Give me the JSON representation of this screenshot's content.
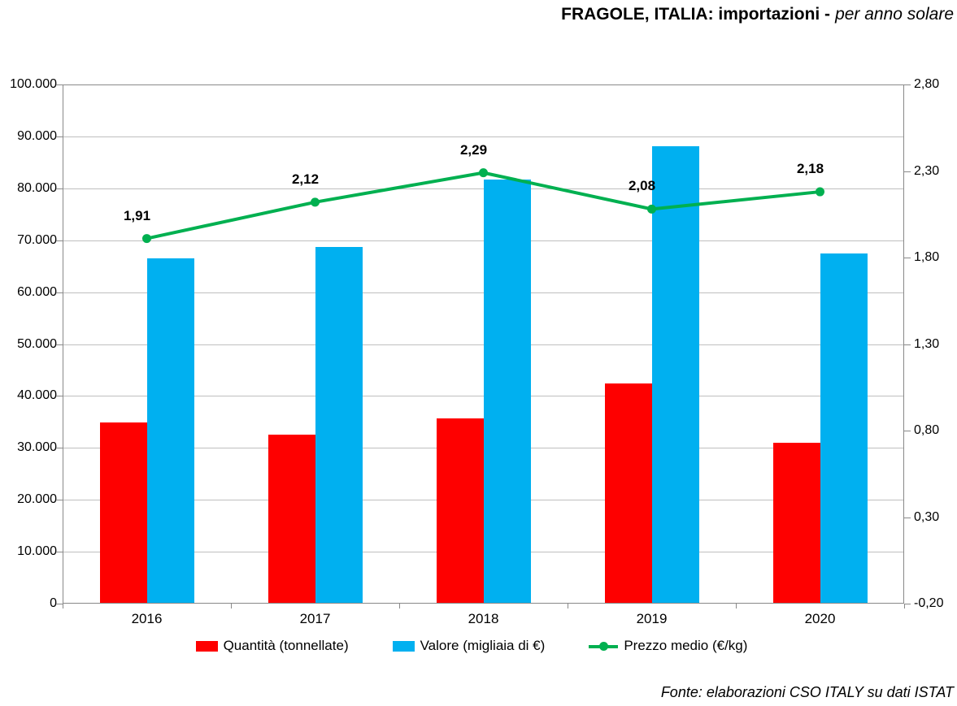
{
  "title": {
    "main": "FRAGOLE, ITALIA: importazioni -",
    "sub": "per anno solare"
  },
  "source": "Fonte: elaborazioni CSO ITALY su dati ISTAT",
  "legend": [
    {
      "label": "Quantità (tonnellate)",
      "color": "#fe0000",
      "marker": "bar"
    },
    {
      "label": "Valore (migliaia di €)",
      "color": "#00b0f0",
      "marker": "bar"
    },
    {
      "label": "Prezzo medio (€/kg)",
      "color": "#00b050",
      "marker": "line"
    }
  ],
  "colors": {
    "quantita": "#fe0000",
    "valore": "#00b0f0",
    "prezzo": "#00b050",
    "gridline": "#bfbfbf",
    "axis": "#898989",
    "text": "#000000",
    "background": "#ffffff"
  },
  "chart_data": {
    "type": "bar",
    "subtype": "grouped bars + line on secondary axis",
    "title": "FRAGOLE, ITALIA: importazioni - per anno solare",
    "categories": [
      "2016",
      "2017",
      "2018",
      "2019",
      "2020"
    ],
    "series": [
      {
        "name": "Quantità (tonnellate)",
        "type": "bar",
        "axis": "left",
        "color": "#fe0000",
        "values": [
          34800,
          32400,
          35500,
          42300,
          30900
        ]
      },
      {
        "name": "Valore (migliaia di €)",
        "type": "bar",
        "axis": "left",
        "color": "#00b0f0",
        "values": [
          66400,
          68600,
          81600,
          88000,
          67300
        ]
      },
      {
        "name": "Prezzo medio (€/kg)",
        "type": "line",
        "axis": "right",
        "color": "#00b050",
        "values": [
          1.91,
          2.12,
          2.29,
          2.08,
          2.18
        ],
        "labels": [
          "1,91",
          "2,12",
          "2,29",
          "2,08",
          "2,18"
        ]
      }
    ],
    "left_axis": {
      "min": 0,
      "max": 100000,
      "tick_labels": [
        "100.000",
        "90.000",
        "80.000",
        "70.000",
        "60.000",
        "50.000",
        "40.000",
        "30.000",
        "20.000",
        "10.000",
        "0"
      ]
    },
    "right_axis": {
      "min": -0.2,
      "max": 2.8,
      "tick_values": [
        2.8,
        2.3,
        1.8,
        1.3,
        0.8,
        0.3,
        -0.2
      ],
      "tick_labels": [
        "2,80",
        "2,30",
        "1,80",
        "1,30",
        "0,80",
        "0,30",
        "-0,20"
      ]
    },
    "grid": true,
    "legend_position": "bottom",
    "xlabel": "",
    "ylabel": ""
  }
}
